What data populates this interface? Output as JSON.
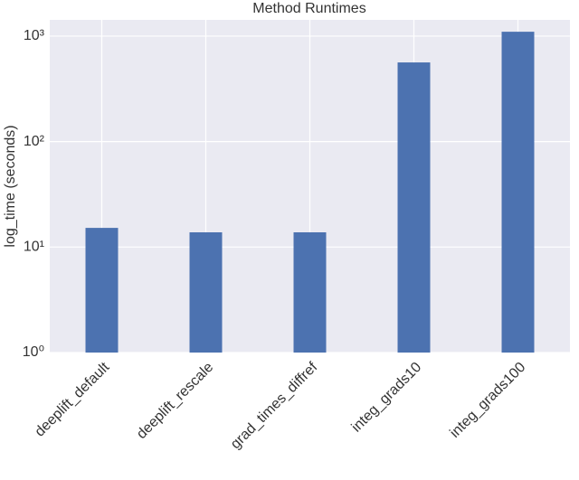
{
  "chart_data": {
    "type": "bar",
    "title": "Method Runtimes",
    "y_label": "log_time (seconds)",
    "categories": [
      "deeplift_default",
      "deeplift_rescale",
      "grad_times_diffref",
      "integ_grads10",
      "integ_grads100"
    ],
    "values": [
      15.2,
      13.8,
      13.8,
      563,
      1100
    ],
    "color": "#4c72b0",
    "log_y": true,
    "ylim": [
      1,
      1425
    ],
    "yticks": [
      {
        "value": 1,
        "label": "10⁰"
      },
      {
        "value": 10,
        "label": "10¹"
      },
      {
        "value": 100,
        "label": "10²"
      },
      {
        "value": 1000,
        "label": "10³"
      }
    ],
    "grid": true
  }
}
